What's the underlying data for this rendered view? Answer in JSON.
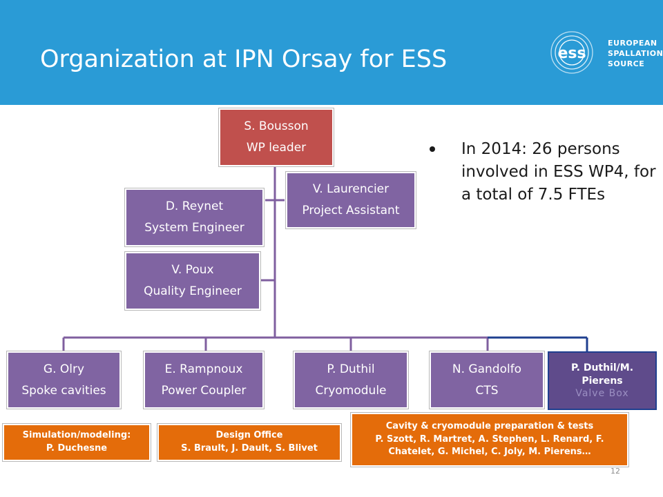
{
  "header": {
    "title": "Organization at IPN Orsay for ESS",
    "logo": {
      "mark": "ess",
      "words": [
        "EUROPEAN",
        "SPALLATION",
        "SOURCE"
      ]
    }
  },
  "org_chart": {
    "leader": {
      "name": "S. Bousson",
      "role": "WP leader"
    },
    "staff": [
      {
        "name": "V. Laurencier",
        "role": "Project Assistant"
      },
      {
        "name": "D. Reynet",
        "role": "System Engineer"
      },
      {
        "name": "V. Poux",
        "role": "Quality Engineer"
      }
    ],
    "groups": [
      {
        "name": "G. Olry",
        "role": "Spoke cavities"
      },
      {
        "name": "E. Rampnoux",
        "role": "Power Coupler"
      },
      {
        "name": "P. Duthil",
        "role": "Cryomodule"
      },
      {
        "name": "N. Gandolfo",
        "role": "CTS"
      },
      {
        "name_line1": "P. Duthil/M.",
        "name_line2": "Pierens",
        "role": "Valve Box"
      }
    ],
    "teams": [
      {
        "line1": "Simulation/modeling:",
        "line2": "P. Duchesne"
      },
      {
        "line1": "Design Office",
        "line2": "S. Brault, J. Dault, S. Blivet"
      },
      {
        "line1": "Cavity & cryomodule preparation & tests",
        "line2": "P. Szott, R. Martret, A. Stephen, L. Renard, F.",
        "line3": "Chatelet, G. Michel, C. Joly, M. Pierens…"
      }
    ]
  },
  "bullets": [
    "In 2014: 26 persons involved in ESS WP4, for a total of 7.5 FTEs"
  ],
  "footer": {
    "page_number": "12"
  },
  "colors": {
    "header": "#2a9bd6",
    "leader": "#c0504d",
    "box": "#8064a2",
    "valve_box": "#5f4b8b",
    "team": "#e46c0a",
    "connector": "#7f5f9f",
    "blue_connector": "#1f3f8f"
  }
}
